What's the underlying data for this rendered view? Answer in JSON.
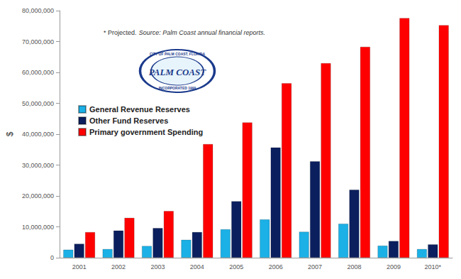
{
  "chart_data": {
    "type": "bar",
    "annotations": [
      "* Projected.",
      "Source: Palm Coast annual financial reports."
    ],
    "logo": {
      "ring_top": "CITY OF PALM COAST, FLORIDA",
      "name": "PALM COAST",
      "ring_bottom": "INCORPORATED 1999"
    },
    "y_label": "$",
    "categories": [
      "2001",
      "2002",
      "2003",
      "2004",
      "2005",
      "2006",
      "2007",
      "2008",
      "2009",
      "2010*"
    ],
    "series": [
      {
        "name": "General Revenue Reserves",
        "color": "#1bb0e6",
        "values": [
          2600000,
          2800000,
          3800000,
          5800000,
          9200000,
          12400000,
          8400000,
          11000000,
          3900000,
          2800000
        ]
      },
      {
        "name": "Other Fund Reserves",
        "color": "#0b1f5e",
        "values": [
          4500000,
          8800000,
          9600000,
          8300000,
          18300000,
          35700000,
          31200000,
          22000000,
          5400000,
          4300000
        ]
      },
      {
        "name": "Primary government Spending",
        "color": "#ff0000",
        "values": [
          8300000,
          12900000,
          15100000,
          36800000,
          43800000,
          56500000,
          63000000,
          68300000,
          77600000,
          75300000
        ]
      }
    ],
    "ylim": [
      0,
      80000000
    ],
    "yticks": [
      0,
      {
        "value": 10000000,
        "label": "10,000,000"
      },
      {
        "value": 20000000,
        "label": "20,000,000"
      },
      {
        "value": 30000000,
        "label": "30,000,000"
      },
      {
        "value": 40000000,
        "label": "40,000,000"
      },
      {
        "value": 50000000,
        "label": "50,000,000"
      },
      {
        "value": 60000000,
        "label": "60,000,000"
      },
      {
        "value": 70000000,
        "label": "70,000,000"
      },
      {
        "value": 80000000,
        "label": "80,000,000"
      }
    ],
    "grid": false,
    "legend": "upper left"
  }
}
